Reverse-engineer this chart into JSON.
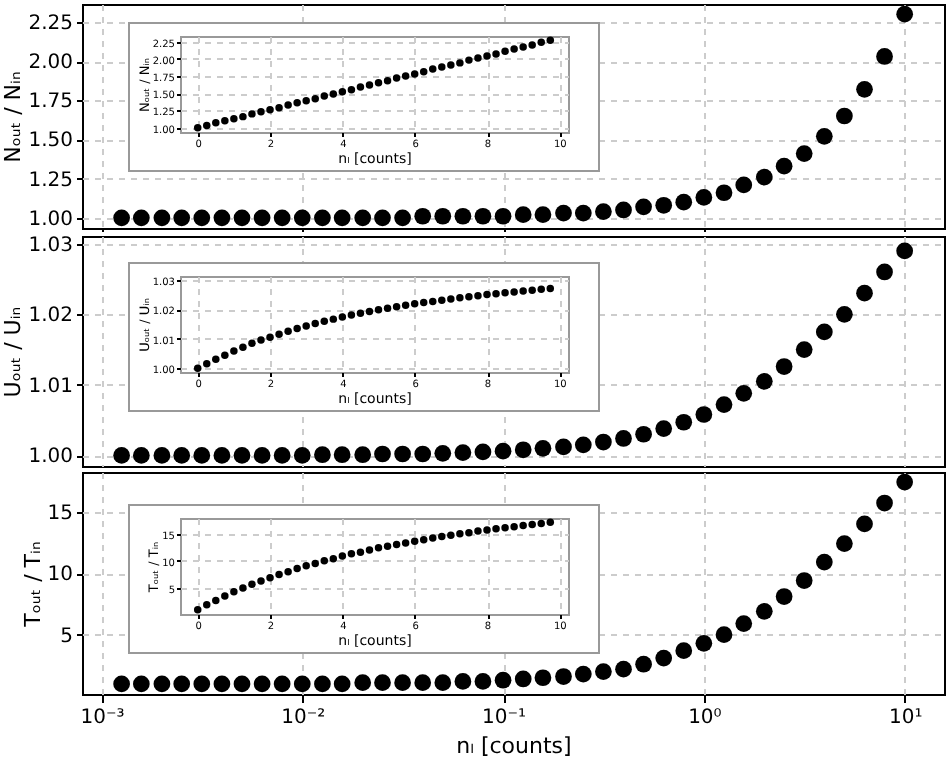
{
  "chart_data": [
    {
      "type": "scatter",
      "ylabel": "Nₒᵤₜ / Nᵢₙ",
      "log": "x",
      "grid": true,
      "marker": "circle",
      "tick_labels": "y",
      "xlim": [
        0.0008,
        15.7
      ],
      "xticks": [
        {
          "value": 0.001,
          "label": null
        },
        {
          "value": 0.01,
          "label": null
        },
        {
          "value": 0.1,
          "label": null
        },
        {
          "value": 1,
          "label": null
        },
        {
          "value": 10,
          "label": null
        }
      ],
      "ylim": [
        0.935,
        2.365
      ],
      "yticks": [
        {
          "value": 1,
          "label": "1.00"
        },
        1.25,
        {
          "value": 1.5,
          "label": "1.50"
        },
        1.75,
        {
          "value": 2,
          "label": "2.00"
        },
        2.25
      ],
      "x": [
        0.00126,
        0.00158,
        0.002,
        0.00251,
        0.00316,
        0.00398,
        0.00501,
        0.00631,
        0.00794,
        0.01,
        0.0126,
        0.0158,
        0.02,
        0.0251,
        0.0316,
        0.0398,
        0.0501,
        0.0631,
        0.0794,
        0.1,
        0.126,
        0.158,
        0.2,
        0.251,
        0.316,
        0.398,
        0.501,
        0.631,
        0.794,
        1,
        1.26,
        1.58,
        2,
        2.51,
        3.16,
        3.98,
        5.01,
        6.31,
        7.94,
        10
      ],
      "series": [
        {
          "color": "#000000",
          "values": [
            1.0,
            1.0,
            1.0,
            1.0,
            1.0,
            1.0,
            1.0,
            1.0,
            1.0,
            1.0,
            1.0,
            1.0,
            1.0,
            1.0,
            1.0,
            1.01,
            1.01,
            1.01,
            1.01,
            1.01,
            1.02,
            1.02,
            1.03,
            1.03,
            1.04,
            1.05,
            1.07,
            1.08,
            1.1,
            1.13,
            1.16,
            1.21,
            1.26,
            1.33,
            1.41,
            1.52,
            1.65,
            1.82,
            2.03,
            2.3
          ]
        }
      ]
    },
    {
      "type": "scatter",
      "xlabel": "nₗ [counts]",
      "ylabel": "Nₒᵤₜ / Nᵢₙ",
      "grid": true,
      "marker": "circle",
      "xlim": [
        -0.49,
        10.24
      ],
      "xticks": [
        0,
        2,
        4,
        6,
        8,
        10
      ],
      "ylim": [
        0.937,
        2.33
      ],
      "yticks": [
        {
          "value": 1,
          "label": "1.00"
        },
        1.25,
        {
          "value": 1.5,
          "label": "1.50"
        },
        1.75,
        {
          "value": 2,
          "label": "2.00"
        },
        2.25
      ],
      "x": [
        0,
        0.25,
        0.5,
        0.75,
        1,
        1.25,
        1.5,
        1.75,
        2,
        2.25,
        2.5,
        2.75,
        3,
        3.25,
        3.5,
        3.75,
        4,
        4.25,
        4.5,
        4.75,
        5,
        5.25,
        5.5,
        5.75,
        6,
        6.25,
        6.5,
        6.75,
        7,
        7.25,
        7.5,
        7.75,
        8,
        8.25,
        8.5,
        8.75,
        9,
        9.25,
        9.5,
        9.75
      ],
      "series": [
        {
          "color": "#000000",
          "values": [
            1.0,
            1.03,
            1.07,
            1.1,
            1.13,
            1.16,
            1.2,
            1.23,
            1.26,
            1.29,
            1.33,
            1.36,
            1.39,
            1.42,
            1.46,
            1.49,
            1.52,
            1.55,
            1.59,
            1.62,
            1.65,
            1.68,
            1.72,
            1.75,
            1.78,
            1.81,
            1.85,
            1.88,
            1.91,
            1.94,
            1.98,
            2.01,
            2.04,
            2.07,
            2.11,
            2.14,
            2.17,
            2.2,
            2.24,
            2.27
          ]
        }
      ]
    },
    {
      "type": "scatter",
      "ylabel": "Uₒᵤₜ / Uᵢₙ",
      "log": "x",
      "grid": true,
      "marker": "circle",
      "tick_labels": "y",
      "xlim": [
        0.0008,
        15.7
      ],
      "xticks": [
        {
          "value": 0.001,
          "label": null
        },
        {
          "value": 0.01,
          "label": null
        },
        {
          "value": 0.1,
          "label": null
        },
        {
          "value": 1,
          "label": null
        },
        {
          "value": 10,
          "label": null
        }
      ],
      "ylim": [
        0.9985,
        1.0311
      ],
      "yticks": [
        {
          "value": 1,
          "label": "1.00"
        },
        1.01,
        1.02,
        1.03
      ],
      "x": [
        0.00126,
        0.00158,
        0.002,
        0.00251,
        0.00316,
        0.00398,
        0.00501,
        0.00631,
        0.00794,
        0.01,
        0.0126,
        0.0158,
        0.02,
        0.0251,
        0.0316,
        0.0398,
        0.0501,
        0.0631,
        0.0794,
        0.1,
        0.126,
        0.158,
        0.2,
        0.251,
        0.316,
        0.398,
        0.501,
        0.631,
        0.794,
        1,
        1.26,
        1.58,
        2,
        2.51,
        3.16,
        3.98,
        5.01,
        6.31,
        7.94,
        10
      ],
      "series": [
        {
          "color": "#000000",
          "values": [
            1.0,
            1.0,
            1.0,
            1.0,
            1.0,
            1.0,
            1.0,
            1.0,
            1.0,
            1.0,
            1.0001,
            1.0001,
            1.0001,
            1.0002,
            1.0002,
            1.0002,
            1.0003,
            1.0004,
            1.0005,
            1.0006,
            1.0008,
            1.001,
            1.0012,
            1.0015,
            1.0019,
            1.0024,
            1.003,
            1.0038,
            1.0047,
            1.0058,
            1.0072,
            1.0088,
            1.0105,
            1.0126,
            1.015,
            1.0175,
            1.02,
            1.023,
            1.026,
            1.029
          ],
          "errors": [
            null,
            null,
            null,
            null,
            null,
            null,
            null,
            null,
            null,
            null,
            null,
            null,
            null,
            null,
            null,
            null,
            null,
            null,
            null,
            null,
            null,
            null,
            null,
            null,
            null,
            null,
            null,
            null,
            null,
            null,
            0.0007,
            0.0007,
            0.0007,
            0.0009,
            0.0009,
            0.0009,
            0.0009,
            0.0009,
            0.0009,
            0.0009
          ]
        }
      ]
    },
    {
      "type": "scatter",
      "xlabel": "nₗ [counts]",
      "ylabel": "Uₒᵤₜ / Uᵢₙ",
      "grid": true,
      "marker": "circle",
      "xlim": [
        -0.49,
        10.24
      ],
      "xticks": [
        0,
        2,
        4,
        6,
        8,
        10
      ],
      "ylim": [
        0.9987,
        1.0312
      ],
      "yticks": [
        {
          "value": 1,
          "label": "1.00"
        },
        1.01,
        1.02,
        1.03
      ],
      "x": [
        0,
        0.25,
        0.5,
        0.75,
        1,
        1.25,
        1.5,
        1.75,
        2,
        2.25,
        2.5,
        2.75,
        3,
        3.25,
        3.5,
        3.75,
        4,
        4.25,
        4.5,
        4.75,
        5,
        5.25,
        5.5,
        5.75,
        6,
        6.25,
        6.5,
        6.75,
        7,
        7.25,
        7.5,
        7.75,
        8,
        8.25,
        8.5,
        8.75,
        9,
        9.25,
        9.5,
        9.75
      ],
      "series": [
        {
          "color": "#000000",
          "values": [
            1.0,
            1.0015,
            1.003,
            1.0044,
            1.0058,
            1.0071,
            1.0084,
            1.0095,
            1.0105,
            1.0115,
            1.0125,
            1.0134,
            1.0143,
            1.0151,
            1.0159,
            1.0166,
            1.0173,
            1.018,
            1.0186,
            1.0192,
            1.0198,
            1.0203,
            1.0208,
            1.0213,
            1.0218,
            1.0222,
            1.0226,
            1.023,
            1.0234,
            1.0238,
            1.0242,
            1.0245,
            1.0249,
            1.0252,
            1.0255,
            1.0258,
            1.0261,
            1.0264,
            1.0267,
            1.027
          ]
        }
      ]
    },
    {
      "type": "scatter",
      "xlabel": "nₗ [counts]",
      "ylabel": "Tₒᵤₜ / Tᵢₙ",
      "log": "x",
      "grid": true,
      "marker": "circle",
      "xlim": [
        0.0008,
        15.7
      ],
      "xticks": [
        {
          "value": 0.001,
          "label": "10⁻³"
        },
        {
          "value": 0.01,
          "label": "10⁻²"
        },
        {
          "value": 0.1,
          "label": "10⁻¹"
        },
        {
          "value": 1,
          "label": "10⁰"
        },
        {
          "value": 10,
          "label": "10¹"
        }
      ],
      "ylim": [
        0.18,
        18.22
      ],
      "yticks": [
        5,
        10,
        15
      ],
      "x": [
        0.00126,
        0.00158,
        0.002,
        0.00251,
        0.00316,
        0.00398,
        0.00501,
        0.00631,
        0.00794,
        0.01,
        0.0126,
        0.0158,
        0.02,
        0.0251,
        0.0316,
        0.0398,
        0.0501,
        0.0631,
        0.0794,
        0.1,
        0.126,
        0.158,
        0.2,
        0.251,
        0.316,
        0.398,
        0.501,
        0.631,
        0.794,
        1,
        1.26,
        1.58,
        2,
        2.51,
        3.16,
        3.98,
        5.01,
        6.31,
        7.94,
        10
      ],
      "series": [
        {
          "color": "#000000",
          "values": [
            1.0,
            1.0,
            1.0,
            1.0,
            1.0,
            1.0,
            1.0,
            1.0,
            1.0,
            1.0,
            1.0,
            1.0,
            1.1,
            1.1,
            1.1,
            1.1,
            1.1,
            1.2,
            1.2,
            1.3,
            1.4,
            1.5,
            1.6,
            1.8,
            2.0,
            2.2,
            2.6,
            3.1,
            3.7,
            4.3,
            5.0,
            5.9,
            6.9,
            8.1,
            9.4,
            10.9,
            12.4,
            14.0,
            15.7,
            17.4
          ]
        }
      ]
    },
    {
      "type": "scatter",
      "xlabel": "nₗ [counts]",
      "ylabel": "Tₒᵤₜ / Tᵢₙ",
      "grid": true,
      "marker": "circle",
      "xlim": [
        -0.49,
        10.24
      ],
      "xticks": [
        0,
        2,
        4,
        6,
        8,
        10
      ],
      "ylim": [
        0.2,
        17.9
      ],
      "yticks": [
        5,
        10,
        15
      ],
      "x": [
        0,
        0.25,
        0.5,
        0.75,
        1,
        1.25,
        1.5,
        1.75,
        2,
        2.25,
        2.5,
        2.75,
        3,
        3.25,
        3.5,
        3.75,
        4,
        4.25,
        4.5,
        4.75,
        5,
        5.25,
        5.5,
        5.75,
        6,
        6.25,
        6.5,
        6.75,
        7,
        7.25,
        7.5,
        7.75,
        8,
        8.25,
        8.5,
        8.75,
        9,
        9.25,
        9.5,
        9.75
      ],
      "series": [
        {
          "color": "#000000",
          "values": [
            1.0,
            1.9,
            2.7,
            3.5,
            4.3,
            5.0,
            5.7,
            6.3,
            6.9,
            7.5,
            8.0,
            8.6,
            9.1,
            9.5,
            10.0,
            10.4,
            10.9,
            11.3,
            11.6,
            12.0,
            12.4,
            12.7,
            13.0,
            13.3,
            13.6,
            13.9,
            14.2,
            14.5,
            14.7,
            15.0,
            15.2,
            15.5,
            15.7,
            15.9,
            16.1,
            16.3,
            16.5,
            16.7,
            16.9,
            17.1
          ]
        }
      ]
    }
  ]
}
